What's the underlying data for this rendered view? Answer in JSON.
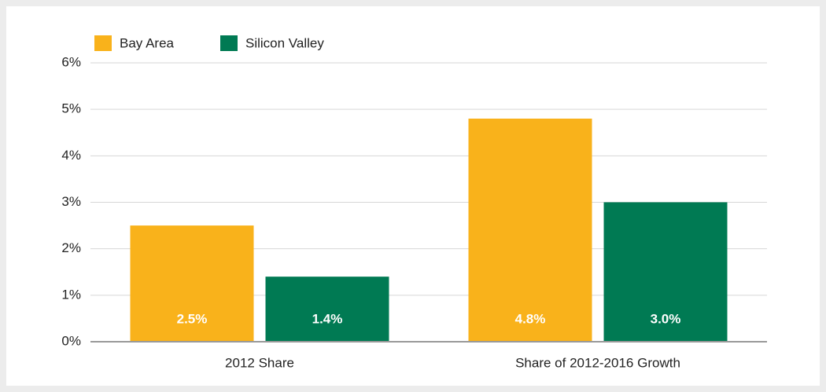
{
  "chart_data": {
    "type": "bar",
    "categories": [
      "2012 Share",
      "Share of 2012-2016 Growth"
    ],
    "series": [
      {
        "name": "Bay Area",
        "color": "#f9b21b",
        "values": [
          2.5,
          4.8
        ],
        "value_labels": [
          "2.5%",
          "4.8%"
        ]
      },
      {
        "name": "Silicon Valley",
        "color": "#007a53",
        "values": [
          1.4,
          3.0
        ],
        "value_labels": [
          "1.4%",
          "3.0%"
        ]
      }
    ],
    "ylim": [
      0,
      6
    ],
    "yticks": [
      {
        "value": 0,
        "label": "0%"
      },
      {
        "value": 1,
        "label": "1%"
      },
      {
        "value": 2,
        "label": "2%"
      },
      {
        "value": 3,
        "label": "3%"
      },
      {
        "value": 4,
        "label": "4%"
      },
      {
        "value": 5,
        "label": "5%"
      },
      {
        "value": 6,
        "label": "6%"
      }
    ],
    "grid": true,
    "legend": "top"
  }
}
